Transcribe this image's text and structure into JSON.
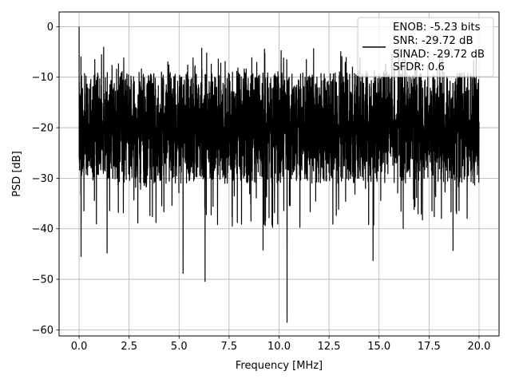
{
  "chart_data": {
    "type": "line",
    "title": "",
    "xlabel": "Frequency [MHz]",
    "ylabel": "PSD [dB]",
    "xlim": [
      -1.0,
      21.0
    ],
    "ylim": [
      -61.2,
      2.9
    ],
    "xticks": [
      0.0,
      2.5,
      5.0,
      7.5,
      10.0,
      12.5,
      15.0,
      17.5,
      20.0
    ],
    "xtick_labels": [
      "0.0",
      "2.5",
      "5.0",
      "7.5",
      "10.0",
      "12.5",
      "15.0",
      "17.5",
      "20.0"
    ],
    "yticks": [
      0,
      -10,
      -20,
      -30,
      -40,
      -50,
      -60
    ],
    "ytick_labels": [
      "0",
      "−10",
      "−20",
      "−30",
      "−40",
      "−50",
      "−60"
    ],
    "grid": true,
    "legend_position": "top-right",
    "legend_text": [
      "ENOB: -5.23 bits",
      "SNR: -29.72 dB",
      "SINAD: -29.72 dB",
      "SFDR: 0.6"
    ],
    "series": [
      {
        "color": "#000000",
        "description": "Dense noise-like PSD trace from 0 to 20 MHz; main band roughly -33 to -10 dB with peaks near -4 dB and notable dips",
        "peak": {
          "x": 0.0,
          "y": 0.0
        },
        "upper_envelope_range": [
          -14,
          -1.5
        ],
        "lower_envelope_range": [
          -34,
          -28
        ],
        "notable_dips": [
          {
            "x": 0.1,
            "y": -45.5
          },
          {
            "x": 1.4,
            "y": -44.8
          },
          {
            "x": 5.2,
            "y": -48.8
          },
          {
            "x": 6.3,
            "y": -50.4
          },
          {
            "x": 9.2,
            "y": -44.2
          },
          {
            "x": 10.4,
            "y": -58.5
          },
          {
            "x": 14.7,
            "y": -46.3
          },
          {
            "x": 18.7,
            "y": -44.3
          }
        ]
      }
    ]
  }
}
